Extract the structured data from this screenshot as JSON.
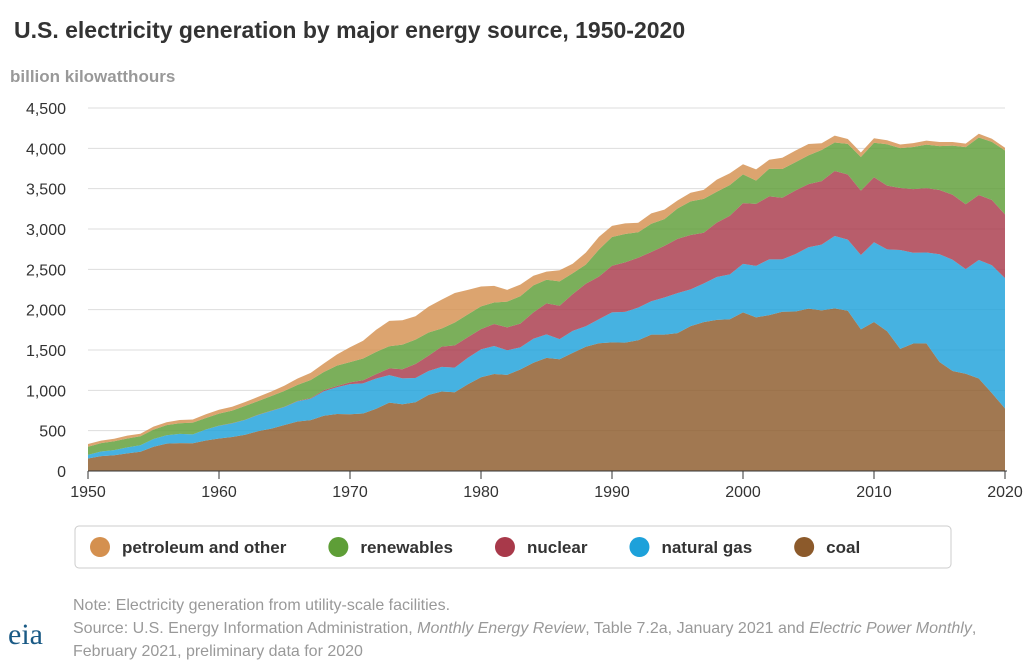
{
  "chart_data": {
    "type": "stacked-area",
    "title": "U.S. electricity generation by major energy source, 1950-2020",
    "y_label": "billion kilowatthours",
    "x": [
      1950,
      1951,
      1952,
      1953,
      1954,
      1955,
      1956,
      1957,
      1958,
      1959,
      1960,
      1961,
      1962,
      1963,
      1964,
      1965,
      1966,
      1967,
      1968,
      1969,
      1970,
      1971,
      1972,
      1973,
      1974,
      1975,
      1976,
      1977,
      1978,
      1979,
      1980,
      1981,
      1982,
      1983,
      1984,
      1985,
      1986,
      1987,
      1988,
      1989,
      1990,
      1991,
      1992,
      1993,
      1994,
      1995,
      1996,
      1997,
      1998,
      1999,
      2000,
      2001,
      2002,
      2003,
      2004,
      2005,
      2006,
      2007,
      2008,
      2009,
      2010,
      2011,
      2012,
      2013,
      2014,
      2015,
      2016,
      2017,
      2018,
      2019,
      2020
    ],
    "series": [
      {
        "name": "petroleum and other",
        "color": "#d4904f",
        "values": [
          34,
          30,
          30,
          36,
          31,
          37,
          36,
          40,
          40,
          47,
          48,
          49,
          48,
          52,
          57,
          65,
          79,
          89,
          104,
          138,
          184,
          220,
          274,
          314,
          301,
          289,
          320,
          358,
          365,
          303,
          246,
          206,
          146,
          144,
          119,
          100,
          137,
          118,
          149,
          158,
          137,
          131,
          117,
          128,
          118,
          99,
          106,
          112,
          150,
          146,
          126,
          140,
          111,
          140,
          143,
          141,
          84,
          85,
          60,
          56,
          56,
          50,
          45,
          48,
          50,
          51,
          46,
          43,
          46,
          38,
          35
        ]
      },
      {
        "name": "renewables",
        "color": "#5e9e37",
        "values": [
          101,
          104,
          110,
          110,
          112,
          117,
          125,
          132,
          145,
          142,
          149,
          155,
          172,
          169,
          180,
          197,
          198,
          225,
          226,
          254,
          251,
          270,
          276,
          275,
          305,
          303,
          287,
          224,
          284,
          283,
          282,
          267,
          320,
          340,
          334,
          293,
          302,
          260,
          237,
          334,
          357,
          352,
          316,
          350,
          331,
          376,
          417,
          419,
          383,
          380,
          356,
          287,
          343,
          355,
          351,
          357,
          385,
          353,
          380,
          417,
          427,
          513,
          494,
          522,
          540,
          544,
          609,
          708,
          713,
          720,
          792
        ]
      },
      {
        "name": "nuclear",
        "color": "#a8394a",
        "values": [
          0,
          0,
          0,
          0,
          0,
          0,
          0,
          0,
          0,
          0,
          1,
          2,
          2,
          3,
          3,
          4,
          6,
          8,
          13,
          14,
          22,
          38,
          54,
          83,
          114,
          173,
          191,
          251,
          276,
          255,
          251,
          273,
          283,
          294,
          328,
          384,
          414,
          455,
          527,
          529,
          577,
          613,
          619,
          610,
          640,
          673,
          675,
          629,
          674,
          728,
          754,
          769,
          780,
          764,
          789,
          782,
          787,
          806,
          806,
          799,
          807,
          790,
          769,
          789,
          797,
          797,
          806,
          805,
          807,
          809,
          790
        ]
      },
      {
        "name": "natural gas",
        "color": "#1da1da",
        "values": [
          45,
          57,
          64,
          74,
          80,
          95,
          104,
          114,
          110,
          137,
          158,
          169,
          184,
          202,
          220,
          222,
          251,
          265,
          304,
          333,
          373,
          374,
          376,
          341,
          320,
          300,
          295,
          306,
          305,
          329,
          346,
          346,
          305,
          274,
          297,
          292,
          249,
          273,
          253,
          297,
          373,
          381,
          404,
          415,
          460,
          496,
          455,
          479,
          531,
          556,
          601,
          639,
          691,
          650,
          710,
          761,
          816,
          897,
          883,
          921,
          988,
          1014,
          1226,
          1124,
          1127,
          1335,
          1379,
          1296,
          1469,
          1586,
          1617
        ]
      },
      {
        "name": "coal",
        "color": "#8c5a2b",
        "values": [
          155,
          185,
          195,
          219,
          239,
          301,
          339,
          346,
          344,
          378,
          403,
          422,
          450,
          494,
          526,
          571,
          613,
          630,
          685,
          706,
          704,
          713,
          771,
          848,
          828,
          853,
          944,
          985,
          976,
          1075,
          1162,
          1203,
          1192,
          1259,
          1342,
          1402,
          1386,
          1464,
          1541,
          1584,
          1594,
          1592,
          1621,
          1690,
          1691,
          1709,
          1796,
          1846,
          1874,
          1881,
          1966,
          1904,
          1933,
          1974,
          1978,
          2013,
          1991,
          2016,
          1986,
          1756,
          1847,
          1733,
          1514,
          1581,
          1582,
          1352,
          1239,
          1206,
          1146,
          965,
          774
        ]
      }
    ],
    "xlim": [
      1950,
      2020
    ],
    "xticks": [
      1950,
      1960,
      1970,
      1980,
      1990,
      2000,
      2010,
      2020
    ],
    "ylim": [
      0,
      4500
    ],
    "yticks": [
      0,
      {
        "value": 500,
        "label": "500"
      },
      {
        "value": 1000,
        "label": "1,000"
      },
      {
        "value": 1500,
        "label": "1,500"
      },
      {
        "value": 2000,
        "label": "2,000"
      },
      {
        "value": 2500,
        "label": "2,500"
      },
      {
        "value": 3000,
        "label": "3,000"
      },
      {
        "value": 3500,
        "label": "3,500"
      },
      {
        "value": 4000,
        "label": "4,000"
      },
      {
        "value": 4500,
        "label": "4,500"
      }
    ],
    "grid": true,
    "legend": "bottom"
  },
  "footer": {
    "note": "Note: Electricity generation from utility-scale facilities.",
    "source": [
      "Source: U.S. Energy Information Administration, ",
      "Monthly Energy Review",
      ", Table 7.2a, January 2021 and ",
      "Electric Power Monthly",
      ", February 2021, preliminary data for 2020"
    ],
    "logo": "eia"
  }
}
